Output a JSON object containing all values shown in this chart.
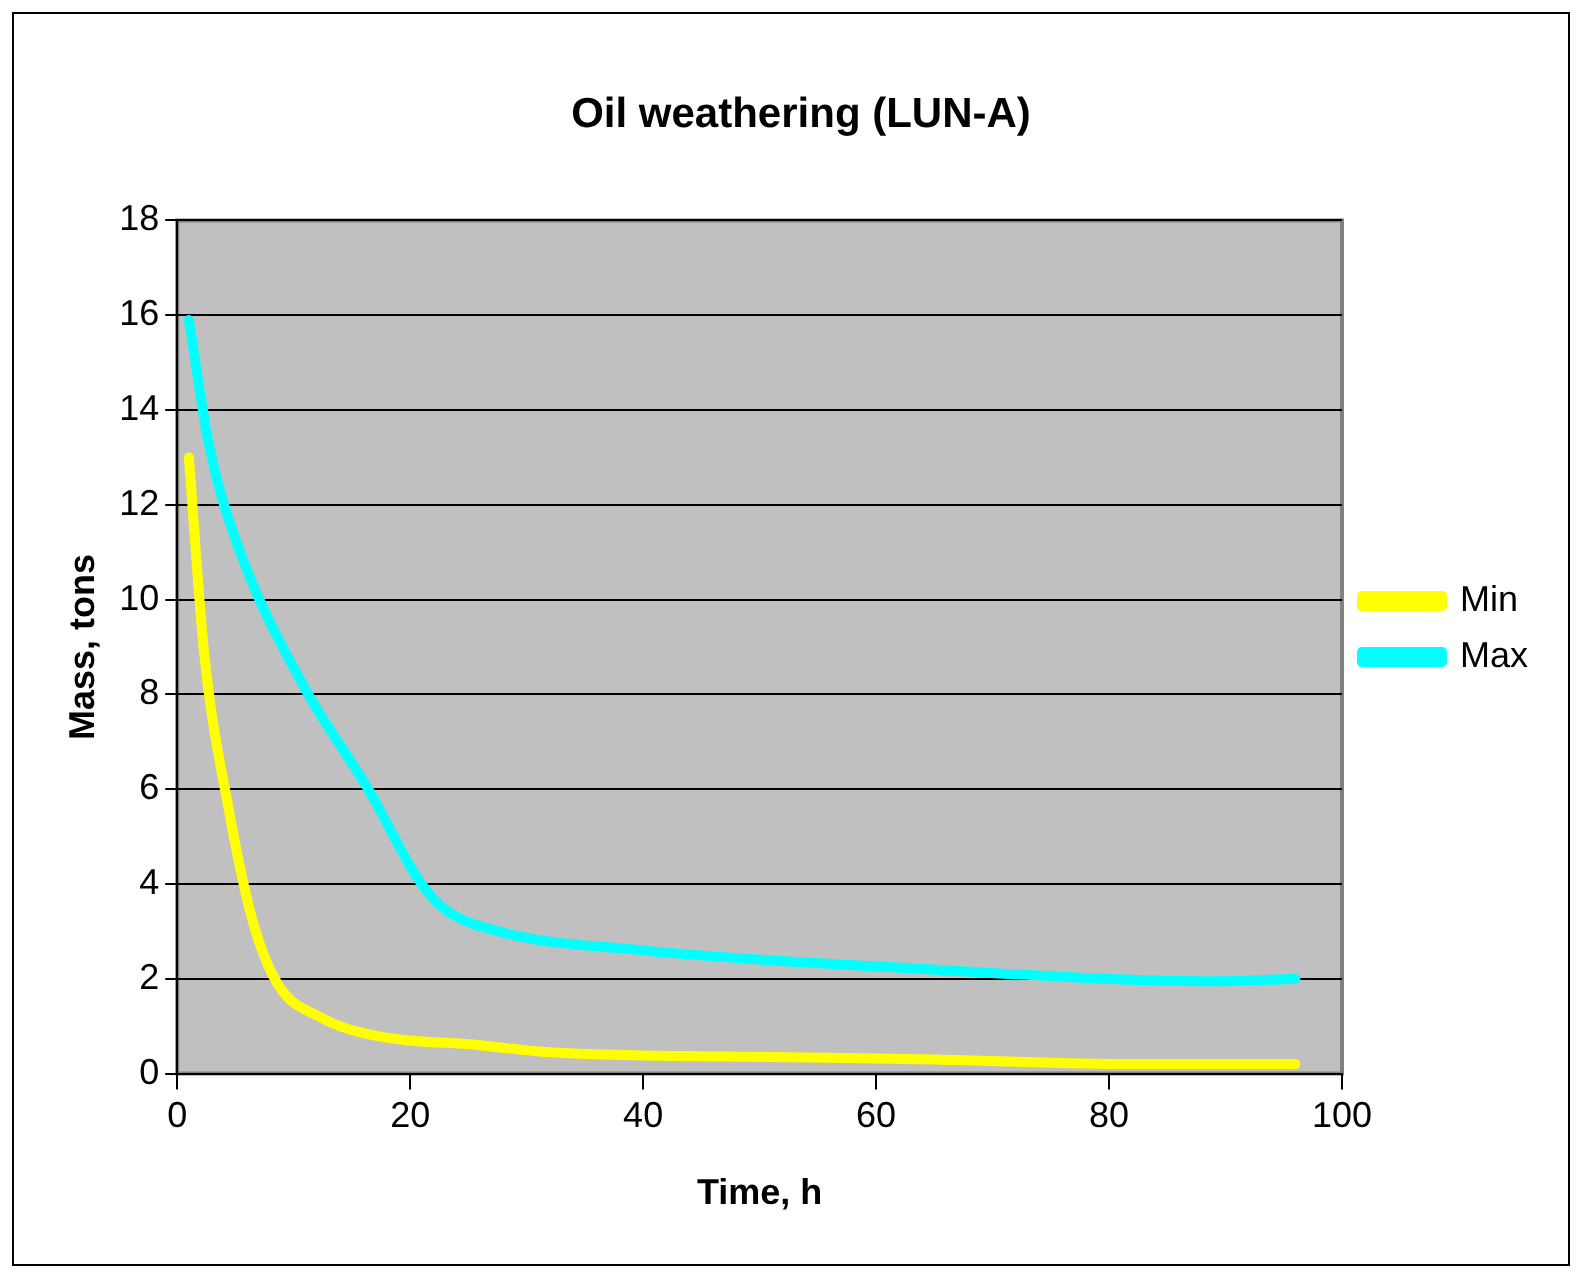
{
  "chart_data": {
    "type": "line",
    "title": "Oil weathering (LUN-A)",
    "xlabel": "Time, h",
    "ylabel": "Mass, tons",
    "xlim": [
      0,
      100
    ],
    "xticks": [
      0,
      20,
      40,
      60,
      80,
      100
    ],
    "ylim": [
      0,
      18
    ],
    "yticks": [
      0,
      2,
      4,
      6,
      8,
      10,
      12,
      14,
      16,
      18
    ],
    "grid": "y",
    "legend": "right",
    "marker": "none",
    "line_style": "solid",
    "series": [
      {
        "name": "Min",
        "color": "#ffff00",
        "x": [
          1,
          2.3,
          4.4,
          6.5,
          8.6,
          12.2,
          17,
          26,
          32,
          51,
          65,
          82,
          96
        ],
        "values": [
          13,
          8.9,
          5.6,
          3.2,
          1.9,
          1.2,
          0.8,
          0.6,
          0.45,
          0.35,
          0.3,
          0.2,
          0.2
        ]
      },
      {
        "name": "Max",
        "color": "#00ffff",
        "x": [
          1,
          2.7,
          5.1,
          10.8,
          16.4,
          20.7,
          22.8,
          27.6,
          40,
          61,
          89.5,
          96
        ],
        "values": [
          15.9,
          13.3,
          11.2,
          8.2,
          6,
          4.1,
          3.5,
          3,
          2.6,
          2.25,
          1.95,
          2
        ]
      }
    ]
  }
}
